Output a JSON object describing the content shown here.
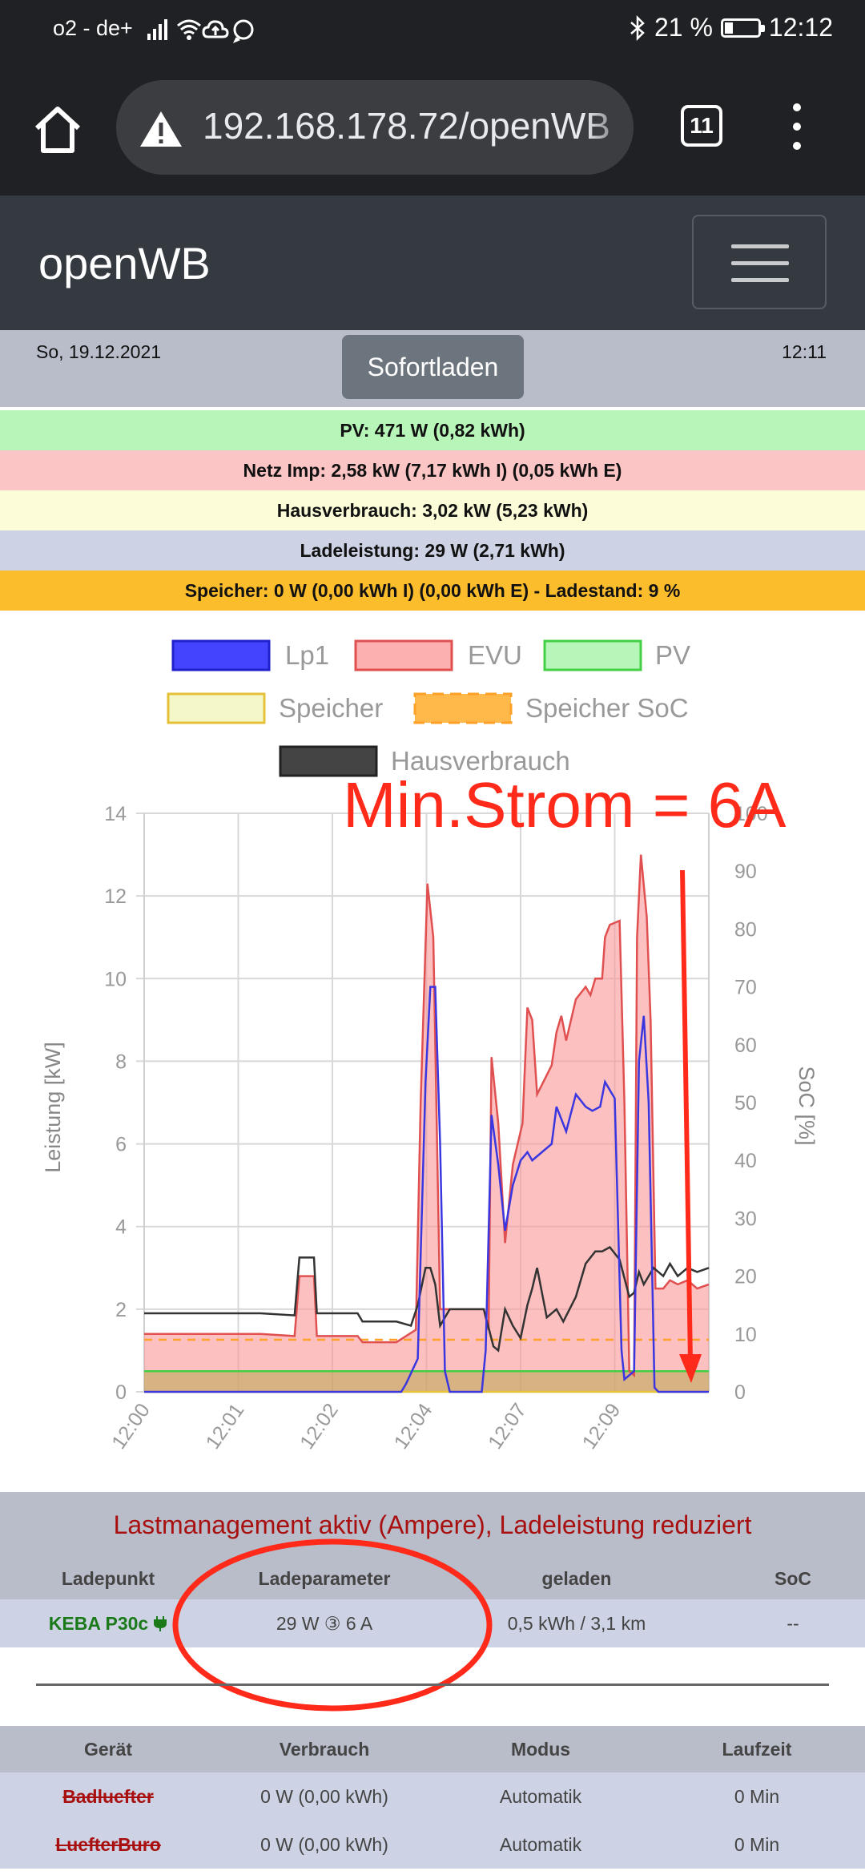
{
  "status_bar": {
    "carrier": "o2 - de+",
    "battery": "21 %",
    "time": "12:12"
  },
  "browser": {
    "url": "192.168.178.72/openWB",
    "tab_count": "11"
  },
  "navbar": {
    "brand": "openWB"
  },
  "info": {
    "date": "So, 19.12.2021",
    "time": "12:11",
    "sofortladen_label": "Sofortladen"
  },
  "summary": {
    "pv": "PV: 471 W (0,82 kWh)",
    "netz": "Netz Imp: 2,58 kW (7,17 kWh I) (0,05 kWh E)",
    "haus": "Hausverbrauch: 3,02 kW (5,23 kWh)",
    "lade": "Ladeleistung: 29 W (2,71 kWh)",
    "speicher": "Speicher: 0 W (0,00 kWh I) (0,00 kWh E) - Ladestand: 9 %"
  },
  "colors": {
    "pv_bg": "#b8f5b8",
    "netz_bg": "#fcc5c5",
    "haus_bg": "#fcfcd8",
    "lade_bg": "#cdd3e4",
    "speicher_bg": "#fcbd2d",
    "annotation": "#ff2a1a"
  },
  "chart_data": {
    "type": "line",
    "legend": [
      "Lp1",
      "EVU",
      "PV",
      "Speicher",
      "Speicher SoC",
      "Hausverbrauch"
    ],
    "ylabel": "Leistung [kW]",
    "y2label": "SoC [%]",
    "ylim": [
      0,
      14
    ],
    "y2lim": [
      0,
      100
    ],
    "yticks": [
      "0",
      "2",
      "4",
      "6",
      "8",
      "10",
      "12",
      "14"
    ],
    "y2ticks": [
      "0",
      "10",
      "20",
      "30",
      "40",
      "50",
      "60",
      "70",
      "80",
      "90",
      "100"
    ],
    "xticks": [
      "12:00",
      "12:01",
      "12:02",
      "12:04",
      "12:07",
      "12:09"
    ],
    "annotation": "Min.Strom = 6A",
    "series": [
      {
        "name": "EVU",
        "points": [
          [
            0,
            1.4
          ],
          [
            1.2,
            1.4
          ],
          [
            1.55,
            1.35
          ],
          [
            1.6,
            2.8
          ],
          [
            1.75,
            2.8
          ],
          [
            1.78,
            1.35
          ],
          [
            2.2,
            1.35
          ],
          [
            2.25,
            1.2
          ],
          [
            2.6,
            1.2
          ],
          [
            2.8,
            1.5
          ],
          [
            2.85,
            7.0
          ],
          [
            2.92,
            12.3
          ],
          [
            2.98,
            11.0
          ],
          [
            3.05,
            2.0
          ],
          [
            3.5,
            2.0
          ],
          [
            3.55,
            1.5
          ],
          [
            3.58,
            8.1
          ],
          [
            3.65,
            6.5
          ],
          [
            3.72,
            3.6
          ],
          [
            3.8,
            5.5
          ],
          [
            3.9,
            6.5
          ],
          [
            3.95,
            9.3
          ],
          [
            4.0,
            9.0
          ],
          [
            4.05,
            7.2
          ],
          [
            4.2,
            7.9
          ],
          [
            4.25,
            8.7
          ],
          [
            4.3,
            9.1
          ],
          [
            4.35,
            8.5
          ],
          [
            4.45,
            9.5
          ],
          [
            4.55,
            9.8
          ],
          [
            4.6,
            9.6
          ],
          [
            4.65,
            10.0
          ],
          [
            4.72,
            10.0
          ],
          [
            4.75,
            11.0
          ],
          [
            4.8,
            11.3
          ],
          [
            4.9,
            11.4
          ],
          [
            4.95,
            7.0
          ],
          [
            5.0,
            0.5
          ],
          [
            5.05,
            0.4
          ],
          [
            5.08,
            11.0
          ],
          [
            5.12,
            13.0
          ],
          [
            5.18,
            11.5
          ],
          [
            5.22,
            9.0
          ],
          [
            5.27,
            2.5
          ],
          [
            5.35,
            2.5
          ],
          [
            5.42,
            2.7
          ],
          [
            5.5,
            2.6
          ],
          [
            5.6,
            2.7
          ],
          [
            5.7,
            2.5
          ],
          [
            5.82,
            2.6
          ]
        ]
      },
      {
        "name": "Lp1",
        "points": [
          [
            0,
            0.0
          ],
          [
            2.65,
            0.0
          ],
          [
            2.7,
            0.2
          ],
          [
            2.82,
            0.8
          ],
          [
            2.9,
            7.5
          ],
          [
            2.95,
            9.8
          ],
          [
            3.0,
            9.8
          ],
          [
            3.05,
            6.0
          ],
          [
            3.1,
            0.5
          ],
          [
            3.15,
            0.0
          ],
          [
            3.48,
            0.0
          ],
          [
            3.52,
            1.0
          ],
          [
            3.58,
            6.7
          ],
          [
            3.65,
            5.5
          ],
          [
            3.72,
            3.9
          ],
          [
            3.8,
            5.0
          ],
          [
            3.88,
            5.6
          ],
          [
            3.95,
            5.8
          ],
          [
            4.0,
            5.6
          ],
          [
            4.05,
            5.7
          ],
          [
            4.2,
            6.0
          ],
          [
            4.25,
            6.9
          ],
          [
            4.35,
            6.3
          ],
          [
            4.45,
            7.2
          ],
          [
            4.55,
            6.9
          ],
          [
            4.62,
            6.8
          ],
          [
            4.7,
            6.9
          ],
          [
            4.75,
            7.5
          ],
          [
            4.85,
            7.1
          ],
          [
            4.92,
            1.0
          ],
          [
            4.95,
            0.3
          ],
          [
            5.05,
            0.5
          ],
          [
            5.1,
            8.0
          ],
          [
            5.15,
            9.1
          ],
          [
            5.2,
            7.0
          ],
          [
            5.26,
            0.1
          ],
          [
            5.3,
            0.0
          ],
          [
            5.82,
            0.0
          ]
        ]
      },
      {
        "name": "Hausverbrauch",
        "points": [
          [
            0,
            1.9
          ],
          [
            1.2,
            1.9
          ],
          [
            1.55,
            1.85
          ],
          [
            1.6,
            3.25
          ],
          [
            1.75,
            3.25
          ],
          [
            1.78,
            1.9
          ],
          [
            2.2,
            1.9
          ],
          [
            2.25,
            1.7
          ],
          [
            2.6,
            1.7
          ],
          [
            2.75,
            1.6
          ],
          [
            2.82,
            2.1
          ],
          [
            2.9,
            3.0
          ],
          [
            2.95,
            3.0
          ],
          [
            3.0,
            2.6
          ],
          [
            3.05,
            1.6
          ],
          [
            3.15,
            2.0
          ],
          [
            3.5,
            2.0
          ],
          [
            3.6,
            1.1
          ],
          [
            3.65,
            1.0
          ],
          [
            3.72,
            2.0
          ],
          [
            3.8,
            1.6
          ],
          [
            3.88,
            1.3
          ],
          [
            3.95,
            2.1
          ],
          [
            4.0,
            2.5
          ],
          [
            4.05,
            3.0
          ],
          [
            4.15,
            1.8
          ],
          [
            4.25,
            2.0
          ],
          [
            4.32,
            1.7
          ],
          [
            4.45,
            2.3
          ],
          [
            4.55,
            3.1
          ],
          [
            4.65,
            3.4
          ],
          [
            4.72,
            3.4
          ],
          [
            4.8,
            3.5
          ],
          [
            4.9,
            3.2
          ],
          [
            5.0,
            2.3
          ],
          [
            5.05,
            2.4
          ],
          [
            5.1,
            2.9
          ],
          [
            5.15,
            2.6
          ],
          [
            5.25,
            3.0
          ],
          [
            5.35,
            2.8
          ],
          [
            5.42,
            3.1
          ],
          [
            5.5,
            2.8
          ],
          [
            5.6,
            3.0
          ],
          [
            5.7,
            2.9
          ],
          [
            5.82,
            3.0
          ]
        ]
      },
      {
        "name": "PV",
        "points": [
          [
            0,
            0.5
          ],
          [
            2.0,
            0.5
          ],
          [
            4.0,
            0.5
          ],
          [
            5.0,
            0.5
          ],
          [
            5.82,
            0.5
          ]
        ]
      },
      {
        "name": "Speicher",
        "points": [
          [
            0,
            0.0
          ],
          [
            5.82,
            0.0
          ]
        ]
      },
      {
        "name": "Speicher SoC",
        "points": [
          [
            0,
            9.0
          ],
          [
            5.82,
            9.0
          ]
        ]
      }
    ]
  },
  "lastmanagement": {
    "title": "Lastmanagement aktiv (Ampere), Ladeleistung reduziert",
    "headers": [
      "Ladepunkt",
      "Ladeparameter",
      "geladen",
      "SoC"
    ],
    "row": {
      "name": "KEBA P30c",
      "icon": "plug-icon",
      "param": "29 W ③ 6 A",
      "geladen": "0,5 kWh / 3,1 km",
      "soc": "--"
    }
  },
  "devices": {
    "headers": [
      "Gerät",
      "Verbrauch",
      "Modus",
      "Laufzeit"
    ],
    "rows": [
      {
        "name": "Badluefter",
        "verbrauch": "0 W (0,00 kWh)",
        "modus": "Automatik",
        "laufzeit": "0 Min"
      },
      {
        "name": "LuefterBuro",
        "verbrauch": "0 W (0,00 kWh)",
        "modus": "Automatik",
        "laufzeit": "0 Min"
      }
    ]
  }
}
